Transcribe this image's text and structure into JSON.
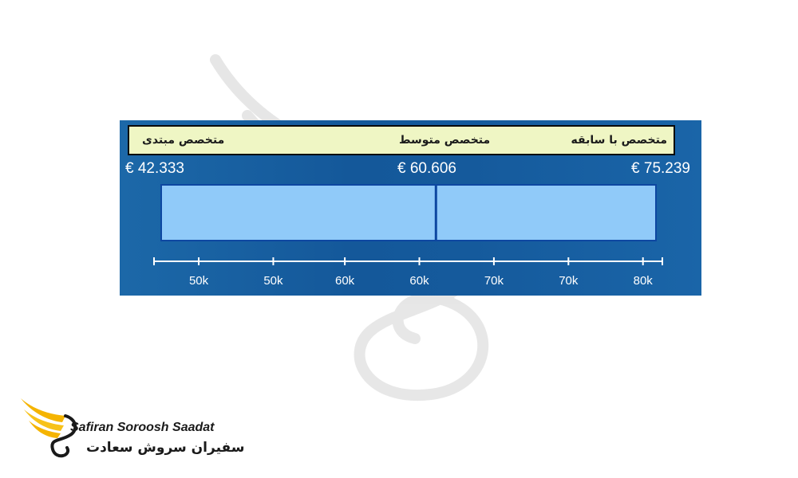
{
  "chart_data": {
    "type": "bar",
    "levels": [
      "متخصص مبتدی",
      "متخصص متوسط",
      "متخصص با سابقه"
    ],
    "salaries": [
      "€ 42.333",
      "€ 60.606",
      "€ 75.239"
    ],
    "values": [
      42333,
      60606,
      75239
    ],
    "range": [
      42333,
      75239
    ],
    "axis": {
      "min": 40000,
      "max": 82000,
      "ticks": [
        {
          "value": 43000,
          "label": ""
        },
        {
          "value": 46000,
          "label": "50k"
        },
        {
          "value": 51000,
          "label": "50k"
        },
        {
          "value": 55800,
          "label": "60k"
        },
        {
          "value": 60800,
          "label": "60k"
        },
        {
          "value": 65800,
          "label": "70k"
        },
        {
          "value": 70800,
          "label": "70k"
        },
        {
          "value": 75800,
          "label": "80k"
        },
        {
          "value": 77100,
          "label": ""
        }
      ]
    },
    "colors": {
      "band": "#90caf9",
      "band_edge": "#0d47a1",
      "median_line": "#0d47a1",
      "panel": "#15599b",
      "header": "#eff6c4"
    }
  },
  "logo": {
    "name_en": "Safiran Soroosh Saadat",
    "name_fa": "سفیران سروش سعادت"
  }
}
